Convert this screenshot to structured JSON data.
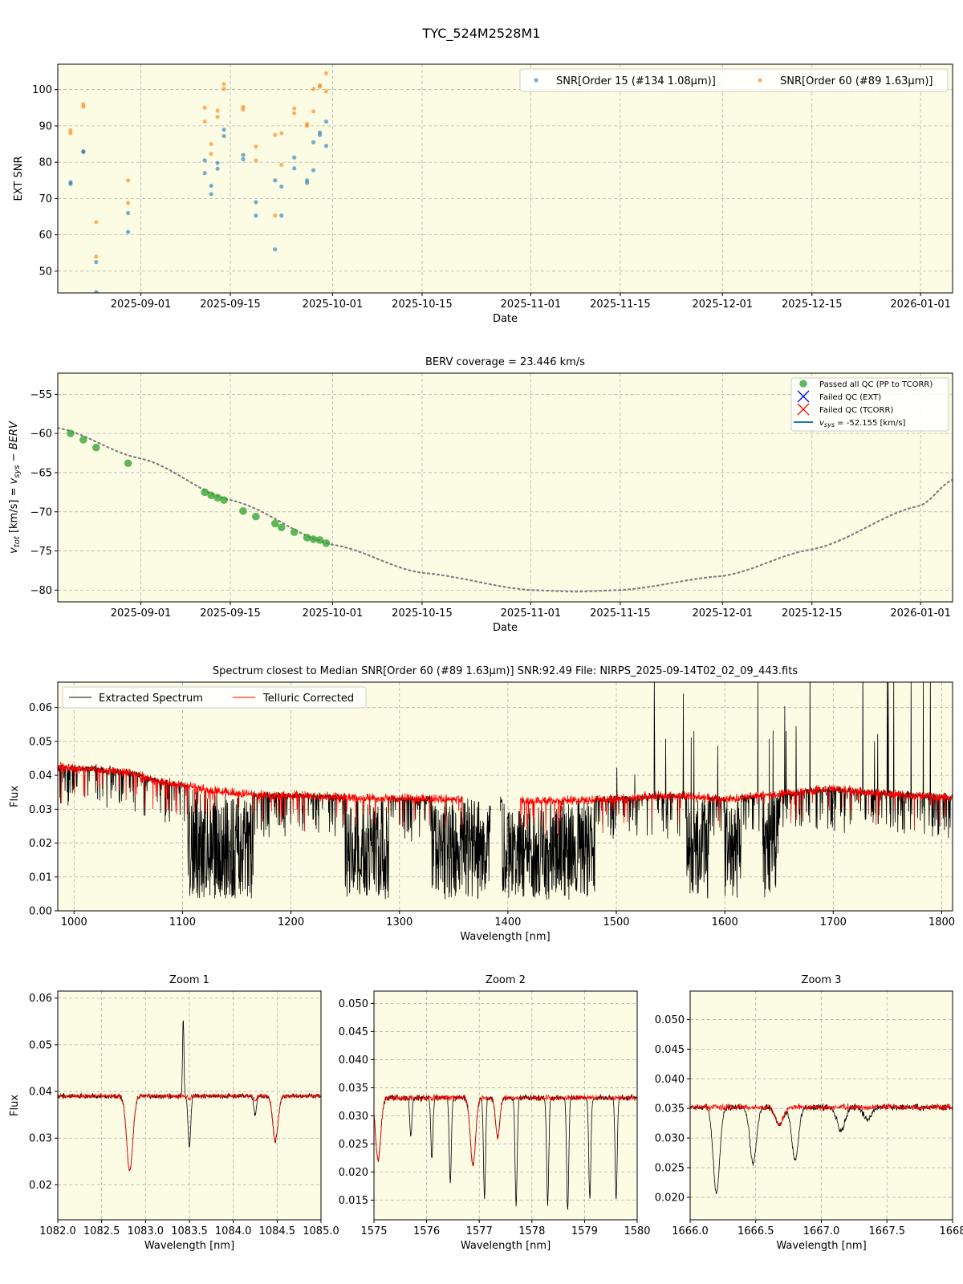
{
  "figure_title": "TYC_524M2528M1",
  "colors": {
    "panel_bg": "#fcfce4",
    "snr_order15": "#1f77b4",
    "snr_order60": "#ff7f0e",
    "passed_qc": "#2ca02c",
    "failed_ext": "#0000ff",
    "failed_tcorr": "#ff0000",
    "vsys_line": "#1f77b4",
    "extracted_spectrum": "#000000",
    "telluric_corrected": "#ff0000",
    "grid": "#b0b0b0"
  },
  "chart_data": [
    {
      "id": "snr",
      "type": "scatter",
      "title": "",
      "xlabel": "Date",
      "ylabel": "EXT SNR",
      "x_is_date": true,
      "xlim": [
        "2025-08-19",
        "2026-01-06"
      ],
      "ylim": [
        44,
        107
      ],
      "xticks": [
        "2025-09-01",
        "2025-09-15",
        "2025-10-01",
        "2025-10-15",
        "2025-11-01",
        "2025-11-15",
        "2025-12-01",
        "2025-12-15",
        "2026-01-01"
      ],
      "yticks": [
        50,
        60,
        70,
        80,
        90,
        100
      ],
      "grid": true,
      "legend": "top-right, single row",
      "series": [
        {
          "name": "SNR[Order 15 (#134 1.08$\\mu$m)]",
          "legend_label": "SNR[Order 15 (#134 1.08μm)]",
          "color": "#1f77b4",
          "points": [
            [
              "2025-08-21",
              74.5
            ],
            [
              "2025-08-21",
              74.0
            ],
            [
              "2025-08-23",
              83.0
            ],
            [
              "2025-08-23",
              82.8
            ],
            [
              "2025-08-25",
              52.5
            ],
            [
              "2025-08-25",
              44.2
            ],
            [
              "2025-08-30",
              66.0
            ],
            [
              "2025-08-30",
              60.8
            ],
            [
              "2025-09-11",
              80.5
            ],
            [
              "2025-09-11",
              77.0
            ],
            [
              "2025-09-12",
              73.5
            ],
            [
              "2025-09-12",
              71.2
            ],
            [
              "2025-09-13",
              79.8
            ],
            [
              "2025-09-13",
              78.2
            ],
            [
              "2025-09-14",
              89.0
            ],
            [
              "2025-09-14",
              87.2
            ],
            [
              "2025-09-17",
              82.0
            ],
            [
              "2025-09-17",
              80.8
            ],
            [
              "2025-09-19",
              69.0
            ],
            [
              "2025-09-19",
              65.3
            ],
            [
              "2025-09-22",
              75.0
            ],
            [
              "2025-09-22",
              56.0
            ],
            [
              "2025-09-23",
              73.3
            ],
            [
              "2025-09-23",
              65.3
            ],
            [
              "2025-09-25",
              81.3
            ],
            [
              "2025-09-25",
              78.3
            ],
            [
              "2025-09-27",
              75.0
            ],
            [
              "2025-09-27",
              74.3
            ],
            [
              "2025-09-28",
              85.5
            ],
            [
              "2025-09-28",
              77.8
            ],
            [
              "2025-09-29",
              88.2
            ],
            [
              "2025-09-29",
              87.5
            ],
            [
              "2025-09-30",
              91.2
            ],
            [
              "2025-09-30",
              84.5
            ]
          ]
        },
        {
          "name": "SNR[Order 60 (#89 1.63$\\mu$m)]",
          "legend_label": "SNR[Order 60 (#89 1.63μm)]",
          "color": "#ff7f0e",
          "points": [
            [
              "2025-08-21",
              88.8
            ],
            [
              "2025-08-21",
              88.0
            ],
            [
              "2025-08-23",
              96.0
            ],
            [
              "2025-08-23",
              95.3
            ],
            [
              "2025-08-25",
              63.5
            ],
            [
              "2025-08-25",
              54.0
            ],
            [
              "2025-08-30",
              75.0
            ],
            [
              "2025-08-30",
              68.8
            ],
            [
              "2025-09-11",
              95.0
            ],
            [
              "2025-09-11",
              91.2
            ],
            [
              "2025-09-12",
              85.0
            ],
            [
              "2025-09-12",
              82.3
            ],
            [
              "2025-09-13",
              94.2
            ],
            [
              "2025-09-13",
              92.5
            ],
            [
              "2025-09-14",
              101.5
            ],
            [
              "2025-09-14",
              100.2
            ],
            [
              "2025-09-17",
              95.2
            ],
            [
              "2025-09-17",
              94.5
            ],
            [
              "2025-09-19",
              84.3
            ],
            [
              "2025-09-19",
              80.5
            ],
            [
              "2025-09-22",
              87.5
            ],
            [
              "2025-09-22",
              65.3
            ],
            [
              "2025-09-23",
              88.0
            ],
            [
              "2025-09-23",
              79.3
            ],
            [
              "2025-09-25",
              94.8
            ],
            [
              "2025-09-25",
              93.5
            ],
            [
              "2025-09-27",
              90.5
            ],
            [
              "2025-09-27",
              90.0
            ],
            [
              "2025-09-28",
              100.2
            ],
            [
              "2025-09-28",
              94.0
            ],
            [
              "2025-09-29",
              101.2
            ],
            [
              "2025-09-29",
              100.8
            ],
            [
              "2025-09-30",
              104.5
            ],
            [
              "2025-09-30",
              99.5
            ]
          ]
        }
      ]
    },
    {
      "id": "berv",
      "type": "scatter",
      "title": "BERV coverage = 23.446 km/s",
      "xlabel": "Date",
      "ylabel": "$v_{tot}$ [km/s] = $v_{sys} - BERV$",
      "ylabel_parts": {
        "a": "v",
        "a_sub": "tot",
        "b": " [km/s] = ",
        "c": "v",
        "c_sub": "sys",
        "d": " − BERV"
      },
      "x_is_date": true,
      "xlim": [
        "2025-08-19",
        "2026-01-06"
      ],
      "ylim": [
        -81.5,
        -52.3
      ],
      "xticks": [
        "2025-09-01",
        "2025-09-15",
        "2025-10-01",
        "2025-10-15",
        "2025-11-01",
        "2025-11-15",
        "2025-12-01",
        "2025-12-15",
        "2026-01-01"
      ],
      "yticks": [
        -55,
        -60,
        -65,
        -70,
        -75,
        -80
      ],
      "ytick_labels": [
        "−55",
        "−60",
        "−65",
        "−70",
        "−75",
        "−80"
      ],
      "grid": true,
      "legend": "top-right",
      "legend_entries": [
        {
          "label": "Passed all QC (PP to TCORR)",
          "marker": "circle",
          "color": "#2ca02c"
        },
        {
          "label": "Failed QC (EXT)",
          "marker": "x",
          "color": "#0000ff"
        },
        {
          "label": "Failed QC (TCORR)",
          "marker": "x",
          "color": "#ff0000"
        },
        {
          "label": "$v_{sys}$ = -52.155 [km/s]",
          "label_prefix": "v",
          "label_sub": "sys",
          "label_rest": " = -52.155 [km/s]",
          "marker": "line",
          "color": "#1f77b4"
        }
      ],
      "series": [
        {
          "name": "Passed all QC (PP to TCORR)",
          "color": "#2ca02c",
          "points": [
            [
              "2025-08-21",
              -60.0
            ],
            [
              "2025-08-23",
              -60.8
            ],
            [
              "2025-08-25",
              -61.8
            ],
            [
              "2025-08-30",
              -63.8
            ],
            [
              "2025-09-11",
              -67.5
            ],
            [
              "2025-09-12",
              -67.9
            ],
            [
              "2025-09-13",
              -68.2
            ],
            [
              "2025-09-14",
              -68.5
            ],
            [
              "2025-09-17",
              -69.9
            ],
            [
              "2025-09-19",
              -70.6
            ],
            [
              "2025-09-22",
              -71.5
            ],
            [
              "2025-09-23",
              -72.0
            ],
            [
              "2025-09-25",
              -72.6
            ],
            [
              "2025-09-27",
              -73.3
            ],
            [
              "2025-09-28",
              -73.5
            ],
            [
              "2025-09-29",
              -73.6
            ],
            [
              "2025-09-30",
              -74.0
            ]
          ]
        },
        {
          "name": "BERV curve",
          "style": "dotted",
          "color": "#808080",
          "points": [
            [
              "2025-08-19",
              -59.3
            ],
            [
              "2025-09-01",
              -63.2
            ],
            [
              "2025-09-15",
              -68.5
            ],
            [
              "2025-10-01",
              -74.2
            ],
            [
              "2025-10-15",
              -77.8
            ],
            [
              "2025-11-01",
              -80.0
            ],
            [
              "2025-11-08",
              -80.2
            ],
            [
              "2025-11-15",
              -80.0
            ],
            [
              "2025-12-01",
              -78.2
            ],
            [
              "2025-12-15",
              -74.8
            ],
            [
              "2026-01-01",
              -69.2
            ],
            [
              "2026-01-06",
              -65.9
            ]
          ]
        }
      ]
    },
    {
      "id": "spectrum",
      "type": "line",
      "title": "Spectrum closest to Median SNR[Order 60 (#89 1.63$\\mu$m)]     SNR:92.49     File: NIRPS_2025-09-14T02_02_09_443.fits",
      "title_display": "Spectrum closest to Median SNR[Order 60 (#89 1.63μm)]     SNR:92.49     File: NIRPS_2025-09-14T02_02_09_443.fits",
      "xlabel": "Wavelength [nm]",
      "ylabel": "Flux",
      "xlim": [
        985,
        1810
      ],
      "ylim": [
        0.0,
        0.0675
      ],
      "xticks": [
        1000,
        1100,
        1200,
        1300,
        1400,
        1500,
        1600,
        1700,
        1800
      ],
      "yticks": [
        0.0,
        0.01,
        0.02,
        0.03,
        0.04,
        0.05,
        0.06
      ],
      "ytick_labels": [
        "0.00",
        "0.01",
        "0.02",
        "0.03",
        "0.04",
        "0.05",
        "0.06"
      ],
      "grid": true,
      "legend": "top-left, single row",
      "legend_entries": [
        {
          "label": "Extracted Spectrum",
          "color": "#000000"
        },
        {
          "label": "Telluric Corrected",
          "color": "#ff0000"
        }
      ],
      "series": [
        {
          "name": "Telluric Corrected",
          "color": "#ff0000",
          "continuum": [
            [
              985,
              0.0425
            ],
            [
              1050,
              0.041
            ],
            [
              1080,
              0.038
            ],
            [
              1100,
              0.037
            ],
            [
              1150,
              0.0345
            ],
            [
              1200,
              0.034
            ],
            [
              1250,
              0.0335
            ],
            [
              1300,
              0.033
            ],
            [
              1360,
              0.033
            ],
            [
              1412,
              0.0325
            ],
            [
              1450,
              0.0325
            ],
            [
              1500,
              0.033
            ],
            [
              1550,
              0.034
            ],
            [
              1600,
              0.033
            ],
            [
              1650,
              0.0345
            ],
            [
              1700,
              0.036
            ],
            [
              1750,
              0.0345
            ],
            [
              1810,
              0.0335
            ]
          ]
        },
        {
          "name": "Extracted Spectrum",
          "color": "#000000",
          "note_bands": [
            [
              1105,
              1165
            ],
            [
              1250,
              1290
            ],
            [
              1330,
              1385
            ],
            [
              1395,
              1480
            ],
            [
              1565,
              1585
            ],
            [
              1600,
              1615
            ],
            [
              1635,
              1650
            ]
          ]
        }
      ]
    },
    {
      "id": "zoom1",
      "type": "line",
      "title": "Zoom 1",
      "xlabel": "Wavelength [nm]",
      "ylabel": "Flux",
      "xlim": [
        1082.0,
        1085.0
      ],
      "ylim": [
        0.0125,
        0.0615
      ],
      "xticks": [
        1082.0,
        1082.5,
        1083.0,
        1083.5,
        1084.0,
        1084.5,
        1085.0
      ],
      "xtick_labels": [
        "1082.0",
        "1082.5",
        "1083.0",
        "1083.5",
        "1084.0",
        "1084.5",
        "1085.0"
      ],
      "yticks": [
        0.02,
        0.03,
        0.04,
        0.05,
        0.06
      ],
      "ytick_labels": [
        "0.02",
        "0.03",
        "0.04",
        "0.05",
        "0.06"
      ],
      "grid": true,
      "continuum": 0.039,
      "lines": [
        {
          "center": 1082.82,
          "width": 0.035,
          "tell_depth": 0.016,
          "ext_depth": 0.016
        },
        {
          "center": 1083.5,
          "width": 0.015,
          "tell_depth": 0.001,
          "ext_depth": 0.011
        },
        {
          "center": 1084.25,
          "width": 0.015,
          "tell_depth": 0.001,
          "ext_depth": 0.004
        },
        {
          "center": 1084.48,
          "width": 0.03,
          "tell_depth": 0.0095,
          "ext_depth": 0.0095
        }
      ],
      "spike": {
        "center": 1083.43,
        "height": 0.0165
      }
    },
    {
      "id": "zoom2",
      "type": "line",
      "title": "Zoom 2",
      "xlabel": "Wavelength [nm]",
      "ylabel": "",
      "xlim": [
        1575,
        1580
      ],
      "ylim": [
        0.0115,
        0.0522
      ],
      "xticks": [
        1575,
        1576,
        1577,
        1578,
        1579,
        1580
      ],
      "xtick_labels": [
        "1575",
        "1576",
        "1577",
        "1578",
        "1579",
        "1580"
      ],
      "yticks": [
        0.015,
        0.02,
        0.025,
        0.03,
        0.035,
        0.04,
        0.045,
        0.05
      ],
      "ytick_labels": [
        "0.015",
        "0.020",
        "0.025",
        "0.030",
        "0.035",
        "0.040",
        "0.045",
        "0.050"
      ],
      "grid": true,
      "continuum": 0.0332,
      "lines": [
        {
          "center": 1575.08,
          "width": 0.05,
          "tell_depth": 0.011,
          "ext_depth": 0.011
        },
        {
          "center": 1575.7,
          "width": 0.02,
          "tell_depth": 0.0,
          "ext_depth": 0.007
        },
        {
          "center": 1576.1,
          "width": 0.02,
          "tell_depth": 0.0,
          "ext_depth": 0.011
        },
        {
          "center": 1576.45,
          "width": 0.02,
          "tell_depth": 0.0,
          "ext_depth": 0.015
        },
        {
          "center": 1576.88,
          "width": 0.05,
          "tell_depth": 0.012,
          "ext_depth": 0.012
        },
        {
          "center": 1577.1,
          "width": 0.02,
          "tell_depth": 0.0,
          "ext_depth": 0.018
        },
        {
          "center": 1577.35,
          "width": 0.04,
          "tell_depth": 0.007,
          "ext_depth": 0.007
        },
        {
          "center": 1577.7,
          "width": 0.02,
          "tell_depth": 0.0,
          "ext_depth": 0.019
        },
        {
          "center": 1578.3,
          "width": 0.02,
          "tell_depth": 0.0,
          "ext_depth": 0.019
        },
        {
          "center": 1578.68,
          "width": 0.02,
          "tell_depth": 0.0,
          "ext_depth": 0.02
        },
        {
          "center": 1579.1,
          "width": 0.02,
          "tell_depth": 0.0,
          "ext_depth": 0.018
        },
        {
          "center": 1579.6,
          "width": 0.02,
          "tell_depth": 0.0,
          "ext_depth": 0.018
        }
      ]
    },
    {
      "id": "zoom3",
      "type": "line",
      "title": "Zoom 3",
      "xlabel": "Wavelength [nm]",
      "ylabel": "",
      "xlim": [
        1666.0,
        1668.0
      ],
      "ylim": [
        0.0162,
        0.0548
      ],
      "xticks": [
        1666.0,
        1666.5,
        1667.0,
        1667.5,
        1668.0
      ],
      "xtick_labels": [
        "1666.0",
        "1666.5",
        "1667.0",
        "1667.5",
        "1668"
      ],
      "yticks": [
        0.02,
        0.025,
        0.03,
        0.035,
        0.04,
        0.045,
        0.05
      ],
      "ytick_labels": [
        "0.020",
        "0.025",
        "0.030",
        "0.035",
        "0.040",
        "0.045",
        "0.050"
      ],
      "grid": true,
      "continuum": 0.0352,
      "lines": [
        {
          "center": 1666.2,
          "width": 0.025,
          "tell_depth": 0.0,
          "ext_depth": 0.0145
        },
        {
          "center": 1666.48,
          "width": 0.025,
          "tell_depth": 0.0,
          "ext_depth": 0.0095
        },
        {
          "center": 1666.68,
          "width": 0.03,
          "tell_depth": 0.003,
          "ext_depth": 0.003
        },
        {
          "center": 1666.8,
          "width": 0.025,
          "tell_depth": 0.0,
          "ext_depth": 0.009
        },
        {
          "center": 1667.15,
          "width": 0.03,
          "tell_depth": 0.0,
          "ext_depth": 0.004
        },
        {
          "center": 1667.35,
          "width": 0.03,
          "tell_depth": 0.0,
          "ext_depth": 0.002
        }
      ]
    }
  ]
}
